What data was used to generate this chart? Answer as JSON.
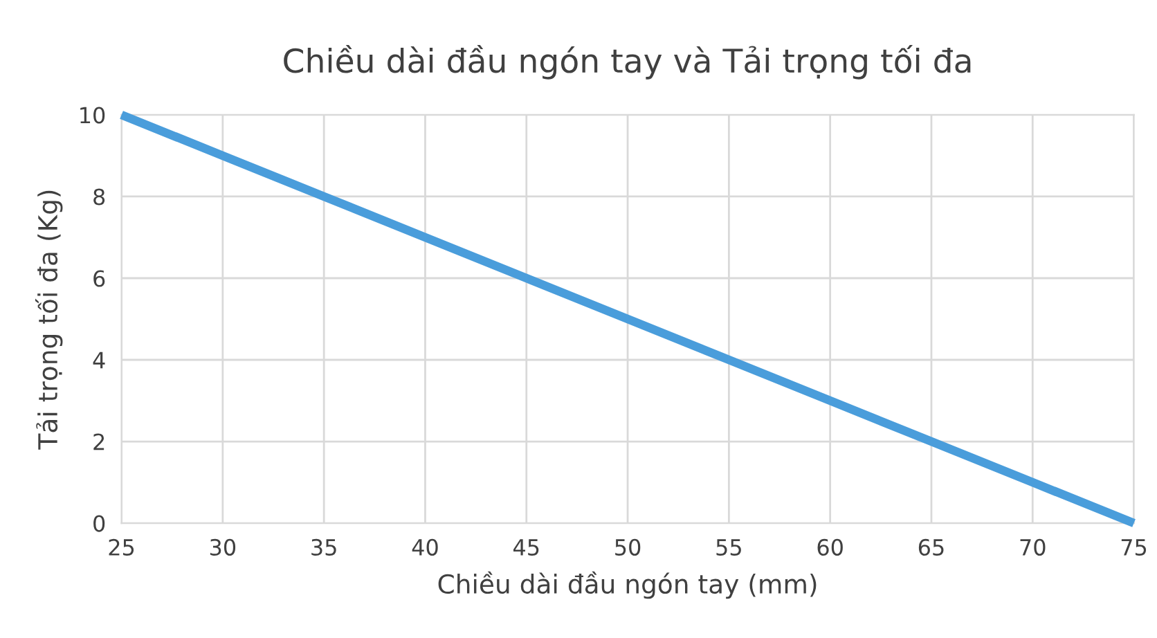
{
  "chart_data": {
    "type": "line",
    "title": "Chiều dài đầu ngón tay và Tải trọng tối đa",
    "xlabel": "Chiều dài đầu ngón tay (mm)",
    "ylabel": "Tải trọng tối đa (Kg)",
    "x": [
      25,
      30,
      35,
      40,
      45,
      50,
      55,
      60,
      65,
      70,
      75
    ],
    "series": [
      {
        "color": "#4a9ddb",
        "values": [
          10,
          9,
          8,
          7,
          6,
          5,
          4,
          3,
          2,
          1,
          0
        ]
      }
    ],
    "xlim": [
      25,
      75
    ],
    "ylim": [
      0,
      10
    ],
    "xticks": [
      25,
      30,
      35,
      40,
      45,
      50,
      55,
      60,
      65,
      70,
      75
    ],
    "yticks": [
      0,
      2,
      4,
      6,
      8,
      10
    ],
    "grid": true,
    "marker": "none",
    "line_style": "solid",
    "legend": false
  }
}
